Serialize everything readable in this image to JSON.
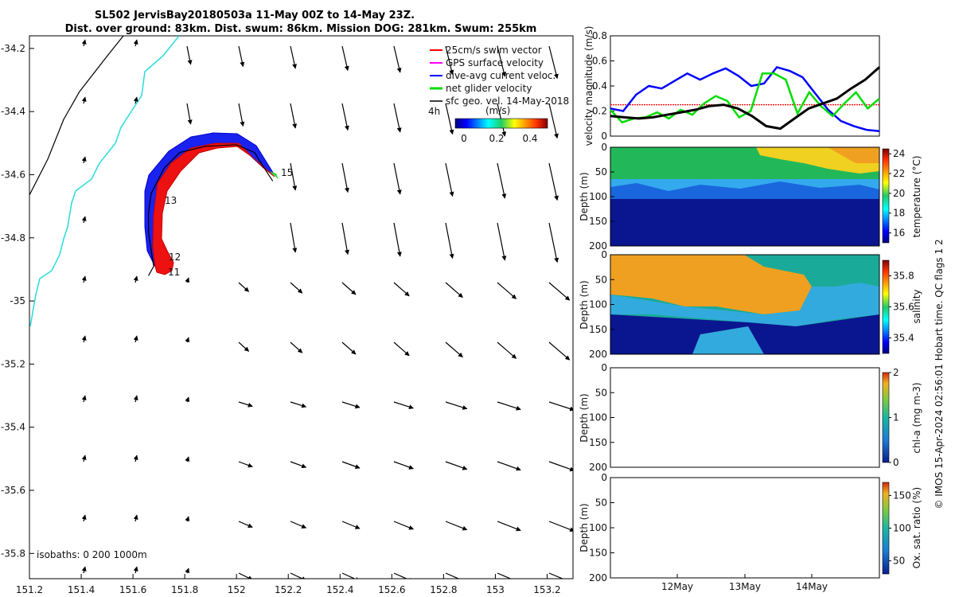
{
  "title": {
    "line1": "SL502 JervisBay20180503a 11-May 00Z to 14-May 23Z.",
    "line2": "Dist. over ground: 83km. Dist. swum: 86km. Mission DOG: 281km. Swum: 255km"
  },
  "credit": "© IMOS 15-Apr-2024 02:56:01 Hobart time. QC flags 1  2",
  "colors": {
    "swim_vector": "#ff0000",
    "gps_surface_velocity": "#ff00ff",
    "dive_avg_current": "#0000ff",
    "net_glider_velocity": "#00dd00",
    "sfc_geo_vel": "#000000",
    "coastline": "#33dddd",
    "isobath": "#000000"
  },
  "chart_data": [
    {
      "type": "map",
      "xticks": [
        "151.2",
        "151.4",
        "151.6",
        "151.8",
        "152",
        "152.2",
        "152.4",
        "152.6",
        "152.8",
        "153",
        "153.2"
      ],
      "yticks": [
        "-34.2",
        "-34.4",
        "-34.6",
        "-34.8",
        "-35",
        "-35.2",
        "-35.4",
        "-35.6",
        "-35.8"
      ],
      "xlim": [
        151.2,
        153.3
      ],
      "ylim": [
        -35.88,
        -34.16
      ],
      "legend": [
        {
          "label": "25cm/s swim vector",
          "color": "#ff0000"
        },
        {
          "label": "GPS surface velocity",
          "color": "#ff00ff"
        },
        {
          "label": "dive-avg current veloc.",
          "color": "#0000ff"
        },
        {
          "label": "net glider velocity",
          "color": "#00dd00"
        },
        {
          "label": "sfc geo. vel. 14-May-2018",
          "color": "#000000"
        }
      ],
      "legend_position": "top-right",
      "colorbar": {
        "label": "(m/s)",
        "ticks": [
          "0",
          "0.2",
          "0.4"
        ],
        "extra_label": "4h"
      },
      "day_labels": [
        "15",
        "13",
        "12",
        "11"
      ],
      "isobaths_note": "isobaths: 0   200  1000m",
      "track": [
        [
          151.66,
          -34.92
        ],
        [
          151.68,
          -34.89
        ],
        [
          151.67,
          -34.84
        ],
        [
          151.66,
          -34.78
        ],
        [
          151.66,
          -34.72
        ],
        [
          151.67,
          -34.66
        ],
        [
          151.72,
          -34.58
        ],
        [
          151.78,
          -34.53
        ],
        [
          151.88,
          -34.51
        ],
        [
          152.0,
          -34.505
        ],
        [
          152.07,
          -34.53
        ],
        [
          152.1,
          -34.57
        ],
        [
          152.14,
          -34.62
        ]
      ]
    },
    {
      "type": "line",
      "ylabel": "velocity magnitude (m/s)",
      "ylim": [
        0,
        0.8
      ],
      "yticks": [
        "0",
        "0.2",
        "0.4",
        "0.6",
        "0.8"
      ],
      "series": [
        {
          "color": "#ff0000",
          "values": [
            0.25,
            0.25
          ]
        },
        {
          "color": "#0000ff",
          "values": [
            0.22,
            0.2,
            0.33,
            0.4,
            0.38,
            0.44,
            0.5,
            0.45,
            0.5,
            0.54,
            0.48,
            0.4,
            0.42,
            0.55,
            0.52,
            0.47,
            0.34,
            0.21,
            0.12,
            0.08,
            0.05,
            0.04
          ]
        },
        {
          "color": "#00dd00",
          "values": [
            0.21,
            0.11,
            0.14,
            0.15,
            0.19,
            0.14,
            0.21,
            0.17,
            0.26,
            0.32,
            0.28,
            0.15,
            0.2,
            0.5,
            0.5,
            0.45,
            0.18,
            0.35,
            0.24,
            0.16,
            0.26,
            0.35,
            0.22,
            0.3
          ]
        },
        {
          "color": "#000000",
          "values": [
            0.16,
            0.15,
            0.14,
            0.15,
            0.17,
            0.19,
            0.21,
            0.24,
            0.25,
            0.22,
            0.16,
            0.08,
            0.06,
            0.14,
            0.22,
            0.26,
            0.3,
            0.38,
            0.45,
            0.55
          ]
        }
      ]
    },
    {
      "type": "heatmap",
      "ylabel": "Depth (m)",
      "yticks": [
        "0",
        "50",
        "100",
        "150",
        "200"
      ],
      "colorbar": {
        "label": "temperature (°C)",
        "ticks": [
          "16",
          "18",
          "20",
          "22",
          "24"
        ],
        "range": [
          15,
          24.5
        ]
      }
    },
    {
      "type": "heatmap",
      "ylabel": "Depth (m)",
      "yticks": [
        "0",
        "50",
        "100",
        "150",
        "200"
      ],
      "colorbar": {
        "label": "salinity",
        "ticks": [
          "35.4",
          "35.6",
          "35.8"
        ],
        "range": [
          35.3,
          35.9
        ]
      }
    },
    {
      "type": "heatmap",
      "ylabel": "Depth (m)",
      "yticks": [
        "0",
        "50",
        "100",
        "150",
        "200"
      ],
      "colorbar": {
        "label": "chl-a (mg m-3)",
        "ticks": [
          "0",
          "1",
          "2"
        ],
        "range": [
          0,
          2
        ]
      }
    },
    {
      "type": "heatmap",
      "ylabel": "Depth (m)",
      "yticks": [
        "0",
        "50",
        "100",
        "150",
        "200"
      ],
      "xticks": [
        "12May",
        "13May",
        "14May"
      ],
      "colorbar": {
        "label": "Ox. sat. ratio (%)",
        "ticks": [
          "50",
          "100",
          "150"
        ],
        "range": [
          30,
          170
        ]
      }
    }
  ]
}
